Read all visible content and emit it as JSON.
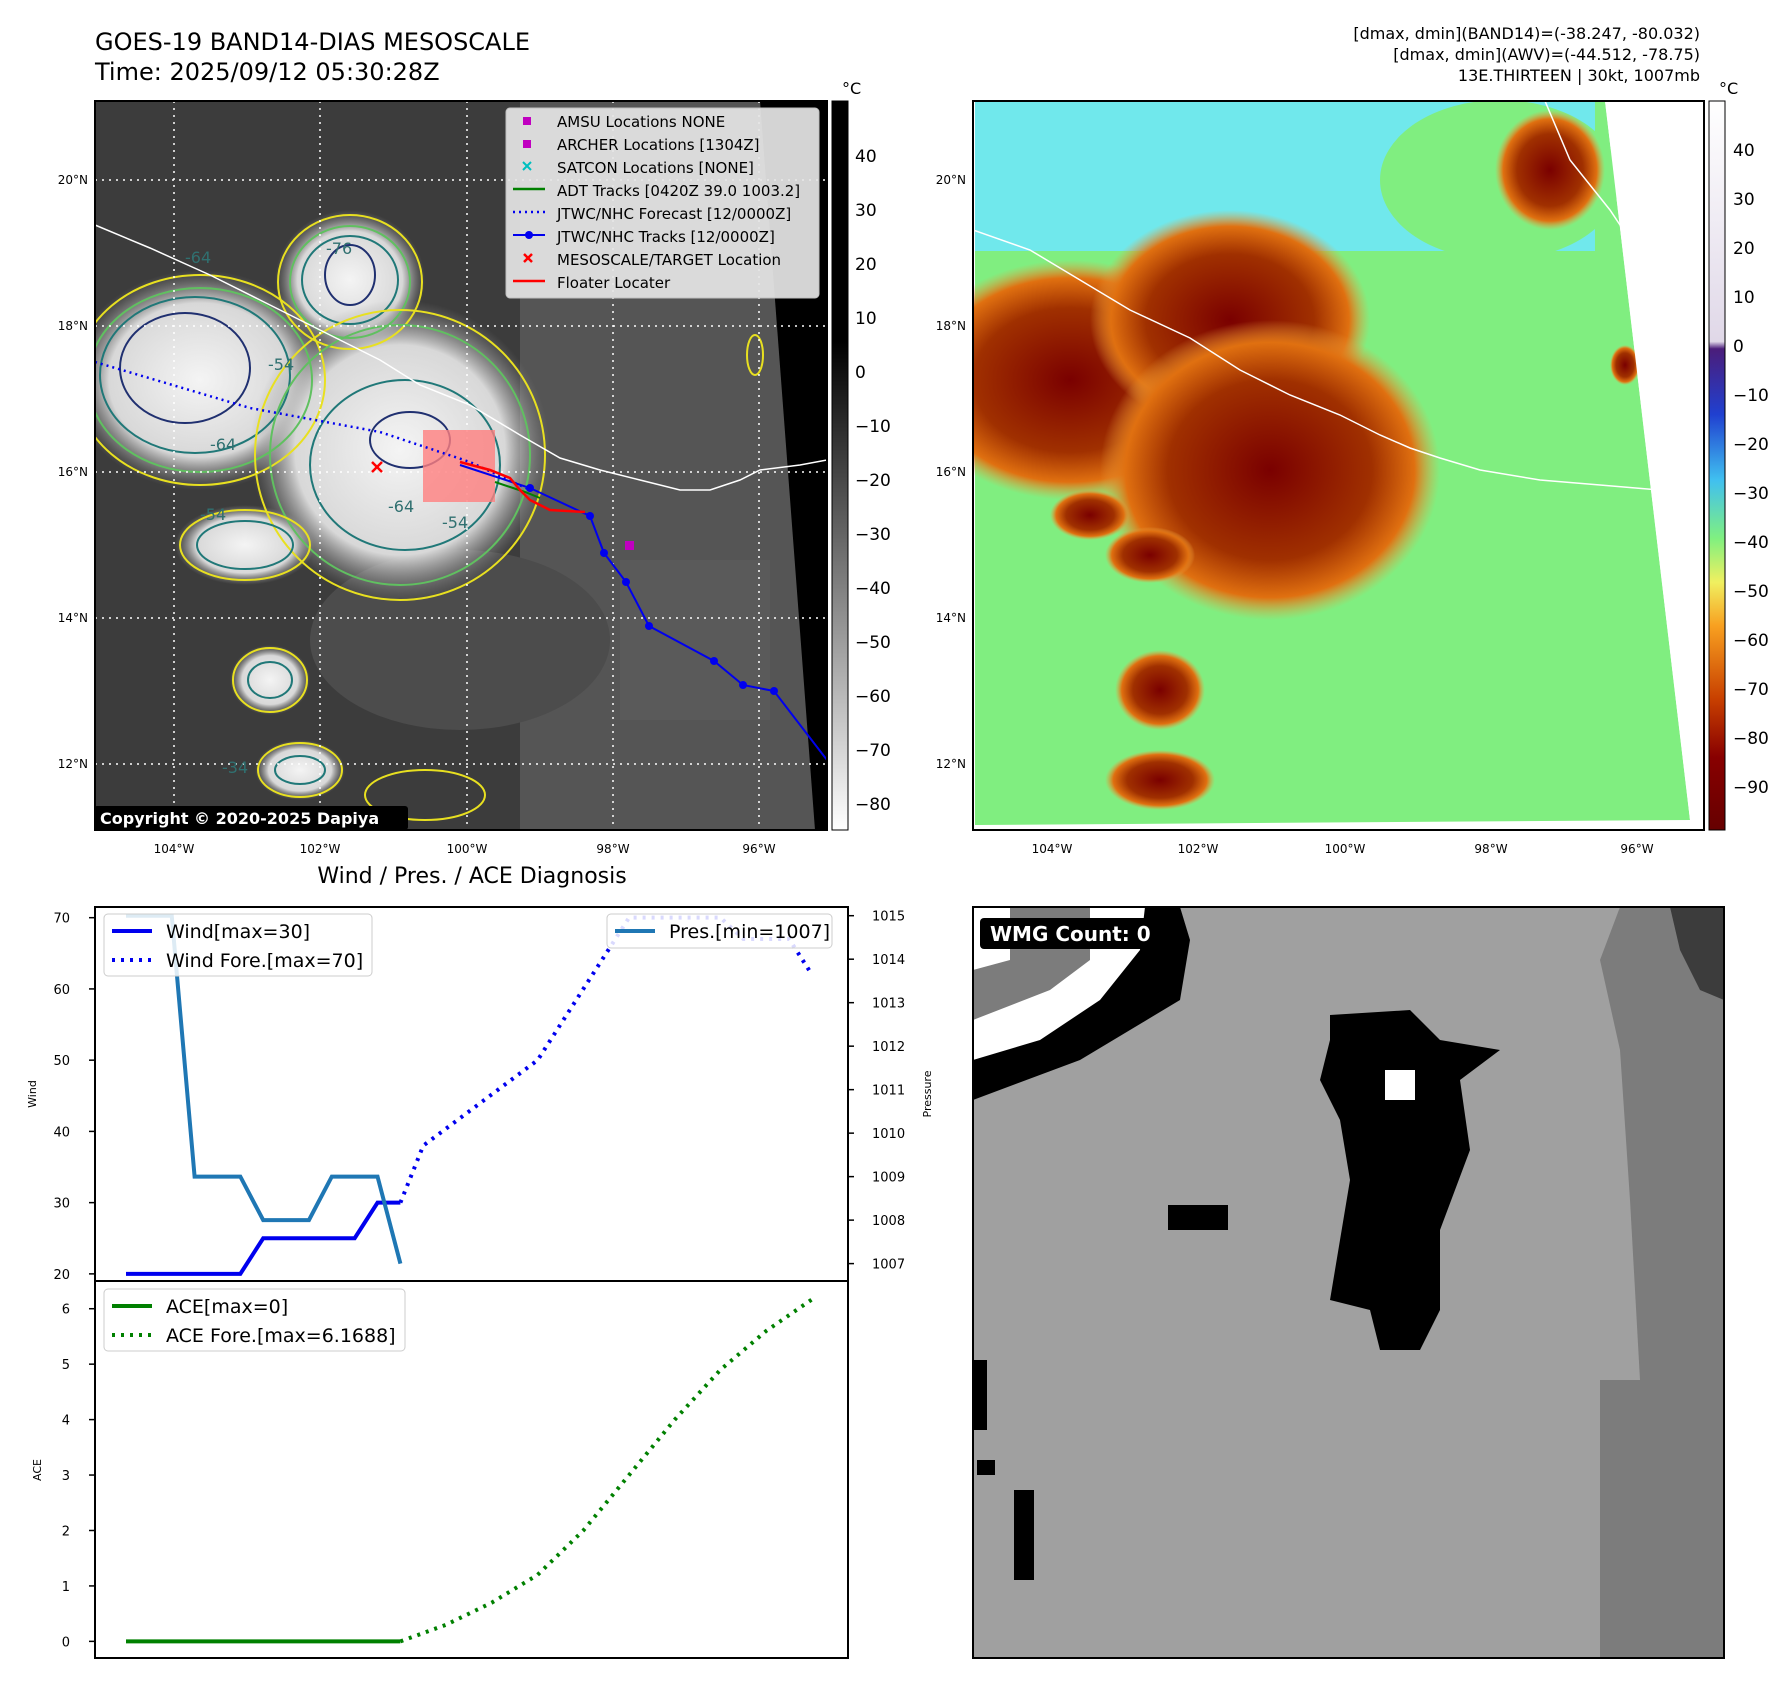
{
  "header": {
    "title_line1": "GOES-19 BAND14-DIAS MESOSCALE",
    "title_line2": "Time: 2025/09/12 05:30:28Z",
    "info_line1": "[dmax, dmin](BAND14)=(-38.247, -80.032)",
    "info_line2": "[dmax, dmin](AWV)=(-44.512, -78.75)",
    "info_line3": "13E.THIRTEEN | 30kt, 1007mb"
  },
  "copyright": "Copyright © 2020-2025 Dapiya",
  "units": {
    "celsius": "°C"
  },
  "map": {
    "lat_labels": [
      "20°N",
      "18°N",
      "16°N",
      "14°N",
      "12°N"
    ],
    "lon_labels": [
      "104°W",
      "102°W",
      "100°W",
      "98°W",
      "96°W"
    ],
    "contour_labels": [
      "-64",
      "-64",
      "-54",
      "-64",
      "-54",
      "-76",
      "-54",
      "-34"
    ],
    "legend": [
      {
        "label": "AMSU Locations NONE",
        "color": "#c000c0",
        "marker": "square"
      },
      {
        "label": "ARCHER Locations [1304Z]",
        "color": "#c000c0",
        "marker": "square"
      },
      {
        "label": "SATCON Locations [NONE]",
        "color": "#00bfbf",
        "marker": "x"
      },
      {
        "label": "ADT Tracks [0420Z 39.0 1003.2]",
        "color": "#008000",
        "marker": "line"
      },
      {
        "label": "JTWC/NHC Forecast [12/0000Z]",
        "color": "#0000ee",
        "marker": "dotted"
      },
      {
        "label": "JTWC/NHC Tracks [12/0000Z]",
        "color": "#0000ee",
        "marker": "line-dot"
      },
      {
        "label": "MESOSCALE/TARGET Location",
        "color": "#ff0000",
        "marker": "x"
      },
      {
        "label": "Floater Locater",
        "color": "#ff0000",
        "marker": "line"
      }
    ]
  },
  "colorbar_ir": {
    "ticks": [
      "40",
      "30",
      "20",
      "10",
      "0",
      "−10",
      "−20",
      "−30",
      "−40",
      "−50",
      "−60",
      "−70",
      "−80"
    ]
  },
  "colorbar_awv": {
    "ticks": [
      "40",
      "30",
      "20",
      "10",
      "0",
      "−10",
      "−20",
      "−30",
      "−40",
      "−50",
      "−60",
      "−70",
      "−80",
      "−90"
    ]
  },
  "wmg_label": "WMG Count: 0",
  "chart_data": [
    {
      "type": "line",
      "title": "Wind / Pres. / ACE Diagnosis",
      "ylabel": "Wind",
      "ylabel_right": "Pressure",
      "ylim": [
        19,
        71.5
      ],
      "ylim_right": [
        1006.6,
        1015.2
      ],
      "yticks": [
        20,
        30,
        40,
        50,
        60,
        70
      ],
      "yticks_right": [
        1007,
        1008,
        1009,
        1010,
        1011,
        1012,
        1013,
        1014,
        1015
      ],
      "x": [
        0,
        1,
        2,
        3,
        4,
        5,
        6,
        7,
        8,
        9,
        10,
        11,
        12,
        13,
        14,
        15,
        16,
        17,
        18,
        19,
        20,
        21,
        22,
        23,
        24,
        25,
        26,
        27,
        28,
        29,
        30
      ],
      "series": [
        {
          "name": "Wind[max=30]",
          "axis": "left",
          "style": "solid",
          "color": "#0000ee",
          "x": [
            0,
            5,
            6,
            10,
            11,
            12
          ],
          "values": [
            20,
            20,
            25,
            25,
            30,
            30
          ]
        },
        {
          "name": "Wind Fore.[max=70]",
          "axis": "left",
          "style": "dotted",
          "color": "#0000ee",
          "x": [
            12,
            13,
            18,
            21,
            22,
            24,
            26,
            27,
            28,
            29,
            30
          ],
          "values": [
            30,
            38,
            50,
            65,
            70,
            70,
            70,
            67,
            67,
            67,
            62
          ]
        },
        {
          "name": "Pres.[min=1007]",
          "axis": "right",
          "style": "solid",
          "color": "#1f77b4",
          "x": [
            0,
            2,
            3,
            5,
            6,
            8,
            9,
            11,
            12
          ],
          "values": [
            1015,
            1015,
            1009,
            1009,
            1008,
            1008,
            1009,
            1009,
            1007
          ]
        }
      ]
    },
    {
      "type": "line",
      "ylabel": "ACE",
      "ylim": [
        -0.3,
        6.5
      ],
      "yticks": [
        0,
        1,
        2,
        3,
        4,
        5,
        6
      ],
      "series": [
        {
          "name": "ACE[max=0]",
          "style": "solid",
          "color": "#008000",
          "x": [
            0,
            12
          ],
          "values": [
            0,
            0
          ]
        },
        {
          "name": "ACE Fore.[max=6.1688]",
          "style": "dotted",
          "color": "#008000",
          "x": [
            12,
            14,
            16,
            18,
            20,
            22,
            24,
            26,
            28,
            30
          ],
          "values": [
            0,
            0.3,
            0.7,
            1.2,
            2.0,
            3.0,
            4.0,
            4.9,
            5.6,
            6.1688
          ]
        }
      ]
    }
  ]
}
